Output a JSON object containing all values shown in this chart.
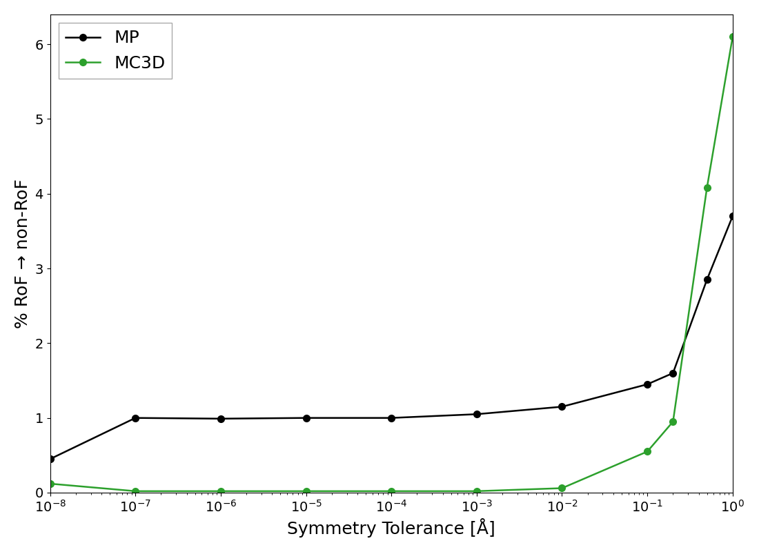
{
  "mp_x": [
    1e-08,
    1e-07,
    1e-06,
    1e-05,
    0.0001,
    0.001,
    0.01,
    0.1,
    0.2,
    0.5,
    1.0
  ],
  "mp_y": [
    0.45,
    1.0,
    0.99,
    1.0,
    1.0,
    1.05,
    1.15,
    1.45,
    1.6,
    2.85,
    3.7
  ],
  "mc3d_x": [
    1e-08,
    1e-07,
    1e-06,
    1e-05,
    0.0001,
    0.001,
    0.01,
    0.1,
    0.2,
    0.5,
    1.0
  ],
  "mc3d_y": [
    0.12,
    0.02,
    0.02,
    0.02,
    0.02,
    0.02,
    0.06,
    0.55,
    0.95,
    4.08,
    6.1
  ],
  "mp_color": "#000000",
  "mc3d_color": "#2ca02c",
  "mp_label": "MP",
  "mc3d_label": "MC3D",
  "xlabel": "Symmetry Tolerance [Å]",
  "ylabel": "% RoF → non-RoF",
  "xlim_log": [
    -8,
    0
  ],
  "ylim": [
    0,
    6.4
  ],
  "yticks": [
    0,
    1,
    2,
    3,
    4,
    5,
    6
  ],
  "marker": "o",
  "markersize": 7,
  "linewidth": 1.8,
  "legend_fontsize": 18,
  "axis_label_fontsize": 18,
  "tick_fontsize": 14,
  "background_color": "#ffffff"
}
